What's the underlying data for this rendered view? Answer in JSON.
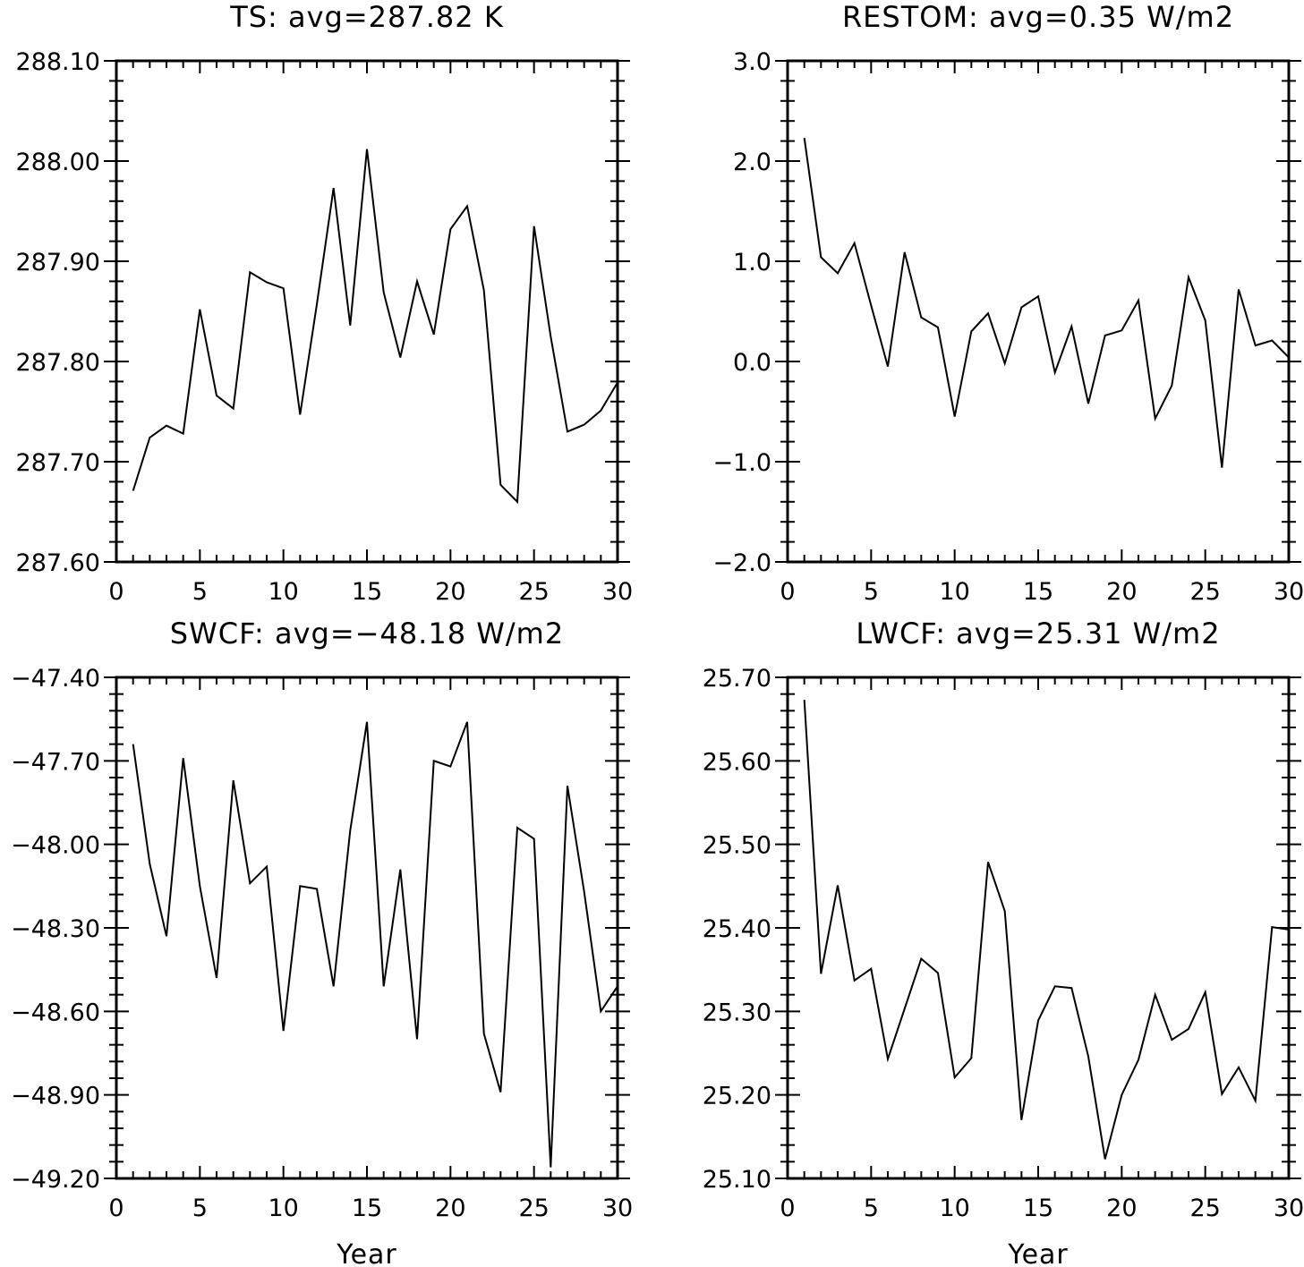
{
  "chart_data": [
    {
      "type": "line",
      "title": "TS: avg=287.82 K",
      "xlabel": "",
      "ylabel": "",
      "xlim": [
        0,
        30
      ],
      "ylim": [
        287.6,
        288.1
      ],
      "x_ticks": [
        0,
        5,
        10,
        15,
        20,
        25,
        30
      ],
      "x_tick_labels": [
        "0",
        "5",
        "10",
        "15",
        "20",
        "25",
        "30"
      ],
      "y_ticks": [
        287.6,
        287.7,
        287.8,
        287.9,
        288.0,
        288.1
      ],
      "y_tick_labels": [
        "287.60",
        "287.70",
        "287.80",
        "287.90",
        "288.00",
        "288.10"
      ],
      "grid": false,
      "x": [
        1,
        2,
        3,
        4,
        5,
        6,
        7,
        8,
        9,
        10,
        11,
        12,
        13,
        14,
        15,
        16,
        17,
        18,
        19,
        20,
        21,
        22,
        23,
        24,
        25,
        26,
        27,
        28,
        29,
        30
      ],
      "series": [
        {
          "values": [
            287.671,
            287.724,
            287.736,
            287.728,
            287.852,
            287.766,
            287.753,
            287.889,
            287.879,
            287.873,
            287.747,
            287.857,
            287.973,
            287.836,
            288.012,
            287.869,
            287.804,
            287.88,
            287.827,
            287.932,
            287.955,
            287.871,
            287.677,
            287.66,
            287.935,
            287.825,
            287.73,
            287.737,
            287.751,
            287.779
          ]
        }
      ]
    },
    {
      "type": "line",
      "title": "RESTOM: avg=0.35 W/m2",
      "xlabel": "",
      "ylabel": "",
      "xlim": [
        0,
        30
      ],
      "ylim": [
        -2.0,
        3.0
      ],
      "x_ticks": [
        0,
        5,
        10,
        15,
        20,
        25,
        30
      ],
      "x_tick_labels": [
        "0",
        "5",
        "10",
        "15",
        "20",
        "25",
        "30"
      ],
      "y_ticks": [
        -2.0,
        -1.0,
        0.0,
        1.0,
        2.0,
        3.0
      ],
      "y_tick_labels": [
        "−2.0",
        "−1.0",
        "0.0",
        "1.0",
        "2.0",
        "3.0"
      ],
      "grid": false,
      "x": [
        1,
        2,
        3,
        4,
        5,
        6,
        7,
        8,
        9,
        10,
        11,
        12,
        13,
        14,
        15,
        16,
        17,
        18,
        19,
        20,
        21,
        22,
        23,
        24,
        25,
        26,
        27,
        28,
        29,
        30
      ],
      "series": [
        {
          "values": [
            2.23,
            1.04,
            0.88,
            1.18,
            0.56,
            -0.05,
            1.09,
            0.44,
            0.34,
            -0.55,
            0.3,
            0.48,
            -0.02,
            0.54,
            0.65,
            -0.11,
            0.35,
            -0.42,
            0.26,
            0.31,
            0.61,
            -0.57,
            -0.24,
            0.84,
            0.41,
            -1.06,
            0.72,
            0.16,
            0.21,
            0.04
          ]
        }
      ]
    },
    {
      "type": "line",
      "title": "SWCF: avg=−48.18 W/m2",
      "xlabel": "Year",
      "ylabel": "",
      "xlim": [
        0,
        30
      ],
      "ylim": [
        -49.2,
        -47.4
      ],
      "x_ticks": [
        0,
        5,
        10,
        15,
        20,
        25,
        30
      ],
      "x_tick_labels": [
        "0",
        "5",
        "10",
        "15",
        "20",
        "25",
        "30"
      ],
      "y_ticks": [
        -49.2,
        -48.9,
        -48.6,
        -48.3,
        -48.0,
        -47.7,
        -47.4
      ],
      "y_tick_labels": [
        "−49.20",
        "−48.90",
        "−48.60",
        "−48.30",
        "−48.00",
        "−47.70",
        "−47.40"
      ],
      "grid": false,
      "x": [
        1,
        2,
        3,
        4,
        5,
        6,
        7,
        8,
        9,
        10,
        11,
        12,
        13,
        14,
        15,
        16,
        17,
        18,
        19,
        20,
        21,
        22,
        23,
        24,
        25,
        26,
        27,
        28,
        29,
        30
      ],
      "series": [
        {
          "values": [
            -47.64,
            -48.07,
            -48.33,
            -47.69,
            -48.15,
            -48.48,
            -47.77,
            -48.14,
            -48.08,
            -48.67,
            -48.15,
            -48.16,
            -48.51,
            -47.95,
            -47.56,
            -48.51,
            -48.09,
            -48.7,
            -47.7,
            -47.72,
            -47.56,
            -48.68,
            -48.89,
            -47.94,
            -47.98,
            -49.16,
            -47.79,
            -48.17,
            -48.6,
            -48.51
          ]
        }
      ]
    },
    {
      "type": "line",
      "title": "LWCF: avg=25.31 W/m2",
      "xlabel": "Year",
      "ylabel": "",
      "xlim": [
        0,
        30
      ],
      "ylim": [
        25.1,
        25.7
      ],
      "x_ticks": [
        0,
        5,
        10,
        15,
        20,
        25,
        30
      ],
      "x_tick_labels": [
        "0",
        "5",
        "10",
        "15",
        "20",
        "25",
        "30"
      ],
      "y_ticks": [
        25.1,
        25.2,
        25.3,
        25.4,
        25.5,
        25.6,
        25.7
      ],
      "y_tick_labels": [
        "25.10",
        "25.20",
        "25.30",
        "25.40",
        "25.50",
        "25.60",
        "25.70"
      ],
      "grid": false,
      "x": [
        1,
        2,
        3,
        4,
        5,
        6,
        7,
        8,
        9,
        10,
        11,
        12,
        13,
        14,
        15,
        16,
        17,
        18,
        19,
        20,
        21,
        22,
        23,
        24,
        25,
        26,
        27,
        28,
        29,
        30
      ],
      "series": [
        {
          "values": [
            25.673,
            25.345,
            25.451,
            25.337,
            25.351,
            25.243,
            25.303,
            25.363,
            25.346,
            25.221,
            25.244,
            25.479,
            25.42,
            25.17,
            25.289,
            25.33,
            25.328,
            25.246,
            25.123,
            25.2,
            25.242,
            25.32,
            25.266,
            25.279,
            25.323,
            25.201,
            25.233,
            25.193,
            25.401,
            25.398
          ]
        }
      ]
    }
  ]
}
